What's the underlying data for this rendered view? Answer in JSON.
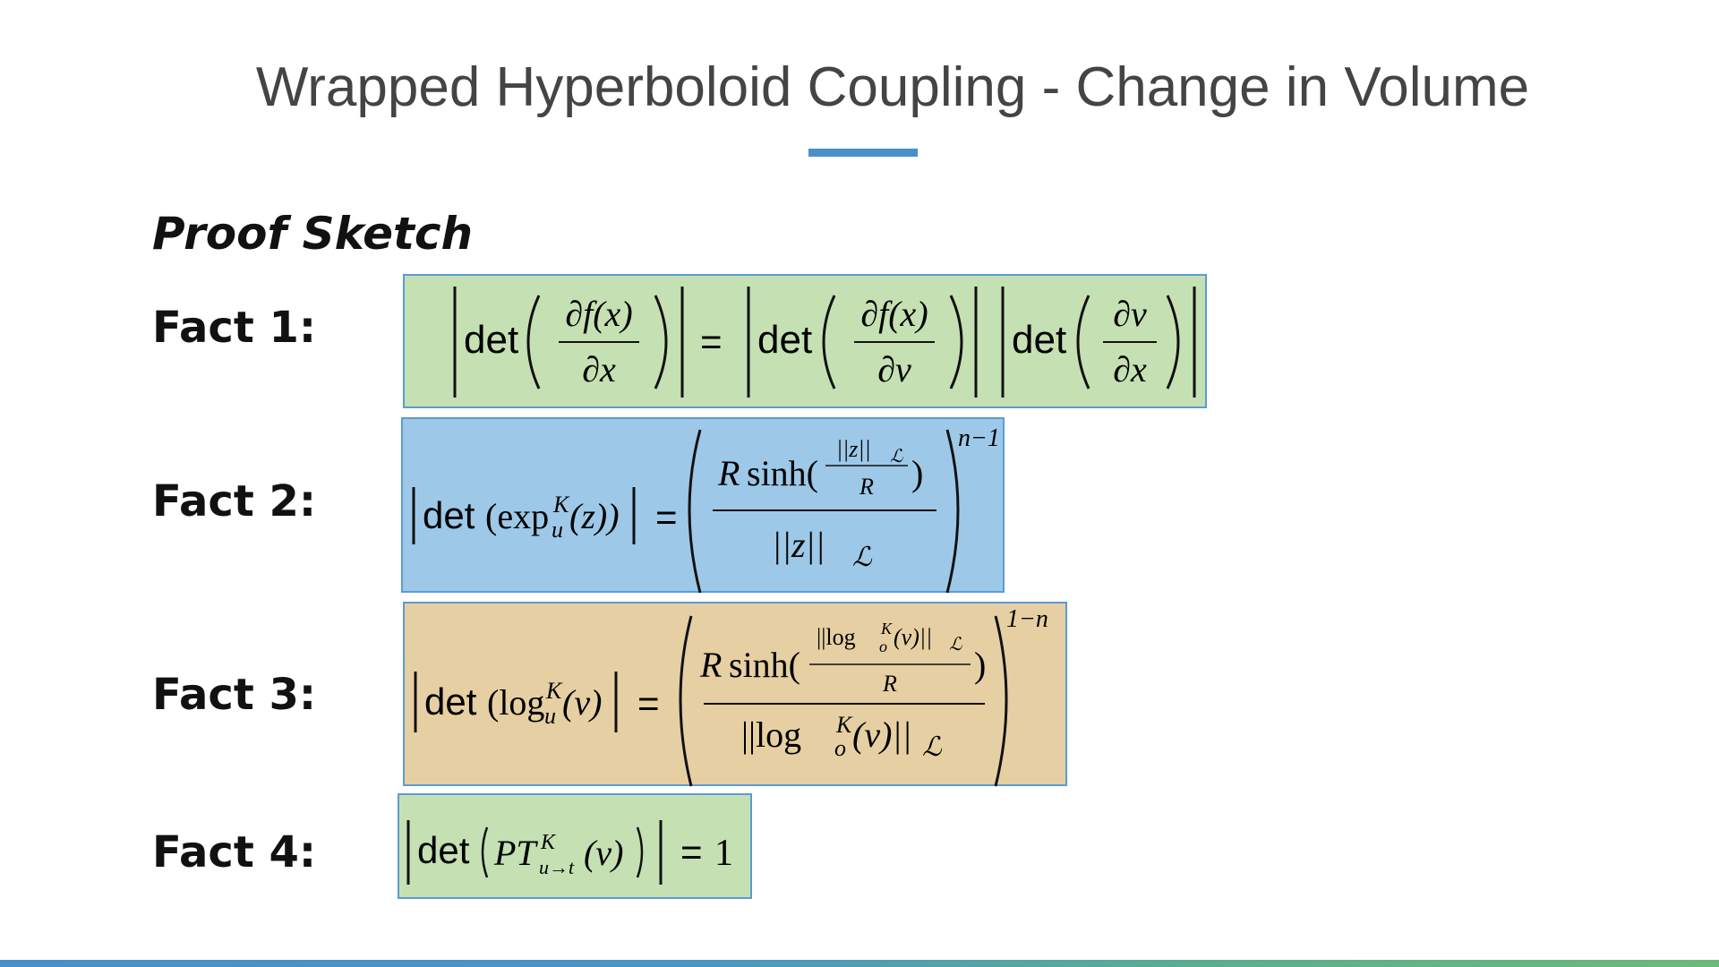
{
  "slide": {
    "title": "Wrapped Hyperboloid Coupling - Change in Volume",
    "subtitle": "Proof Sketch",
    "accent_color": "#4a90c8"
  },
  "facts": [
    {
      "label": "Fact 1:"
    },
    {
      "label": "Fact 2:"
    },
    {
      "label": "Fact 3:"
    },
    {
      "label": "Fact 4:"
    }
  ],
  "eq": {
    "det": "det",
    "eq": "=",
    "df": "∂f(x)",
    "dx": "∂x",
    "dv": "∂v",
    "R": "R",
    "sinh": "sinh(",
    "close_paren": ")",
    "exp": "(exp",
    "K": "K",
    "u": "u",
    "o": "o",
    "z_close": "(z))",
    "normz": "||z||",
    "L": "ℒ",
    "n_minus_1": "n−1",
    "one_minus_n": "1−n",
    "log_open": "(log",
    "v_close": "(v)",
    "log": "log",
    "norm_open": "||log",
    "norm_close": "(v)||",
    "PT": "PT",
    "u_to_t": "u→t",
    "one": "1"
  }
}
